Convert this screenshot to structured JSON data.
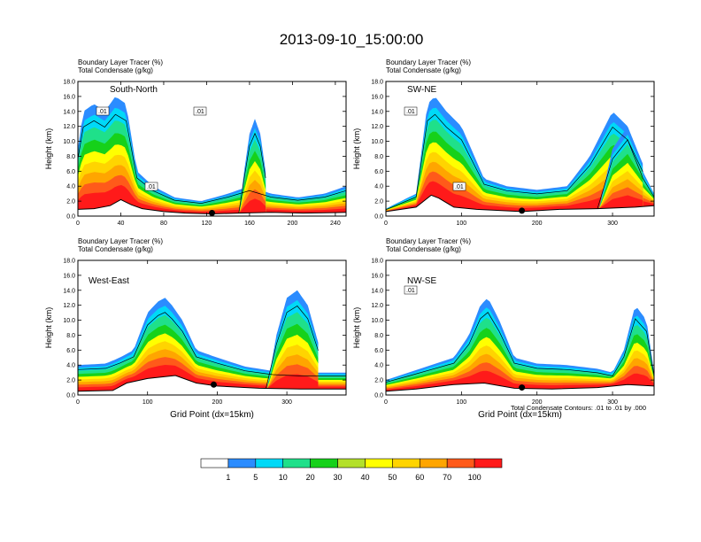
{
  "title": "2013-09-10_15:00:00",
  "chart_data": [
    {
      "type": "heatmap",
      "panel_label": "South-North",
      "subtitles": [
        "Boundary Layer Tracer    (%)",
        "Total Condensate    (g/kg)"
      ],
      "ylabel": "Height (km)",
      "xlabel": "",
      "xlim": [
        0,
        250
      ],
      "ylim": [
        0,
        18
      ],
      "xticks": [
        "0",
        "40",
        "80",
        "120",
        "160",
        "200",
        "240"
      ],
      "xtick_values": [
        0,
        40,
        80,
        120,
        160,
        200,
        240
      ],
      "yticks": [
        "0.0",
        "2.0",
        "4.0",
        "6.0",
        "8.0",
        "10.0",
        "12.0",
        "14.0",
        "16.0",
        "18.0"
      ],
      "contour_labels": [
        ".01",
        ".01",
        ".01"
      ],
      "marker_x": 125,
      "terrain": [
        [
          0,
          0.9
        ],
        [
          15,
          1.0
        ],
        [
          30,
          1.4
        ],
        [
          40,
          2.2
        ],
        [
          50,
          1.5
        ],
        [
          60,
          1.0
        ],
        [
          80,
          0.6
        ],
        [
          100,
          0.4
        ],
        [
          125,
          0.3
        ],
        [
          150,
          0.4
        ],
        [
          180,
          0.5
        ],
        [
          210,
          0.4
        ],
        [
          250,
          0.5
        ]
      ],
      "plumes": [
        {
          "x": [
            0,
            5,
            15,
            25,
            35,
            45,
            55,
            70,
            90,
            115,
            140,
            160,
            180,
            205,
            230,
            250
          ],
          "top": [
            9,
            14,
            15,
            14,
            16,
            15,
            6,
            4,
            2.5,
            2,
            3,
            4,
            3,
            2.5,
            3,
            4
          ]
        },
        {
          "x": [
            150,
            155,
            160,
            165,
            170,
            175
          ],
          "top": [
            0,
            6,
            11,
            13,
            11,
            6
          ]
        }
      ]
    },
    {
      "type": "heatmap",
      "panel_label": "SW-NE",
      "subtitles": [
        "Boundary Layer Tracer    (%)",
        "Total Condensate    (g/kg)"
      ],
      "ylabel": "Height (km)",
      "xlabel": "",
      "xlim": [
        0,
        355
      ],
      "ylim": [
        0,
        18
      ],
      "xticks": [
        "0",
        "100",
        "200",
        "300"
      ],
      "xtick_values": [
        0,
        100,
        200,
        300
      ],
      "yticks": [
        "0.0",
        "2.0",
        "4.0",
        "6.0",
        "8.0",
        "10.0",
        "12.0",
        "14.0",
        "16.0",
        "18.0"
      ],
      "contour_labels": [
        ".01",
        ".01"
      ],
      "marker_x": 180,
      "terrain": [
        [
          0,
          0.6
        ],
        [
          40,
          1.2
        ],
        [
          60,
          2.8
        ],
        [
          70,
          2.4
        ],
        [
          90,
          1.2
        ],
        [
          120,
          0.9
        ],
        [
          180,
          0.6
        ],
        [
          230,
          0.9
        ],
        [
          280,
          1.0
        ],
        [
          330,
          1.2
        ],
        [
          355,
          1.4
        ]
      ],
      "plumes": [
        {
          "x": [
            0,
            20,
            40,
            55,
            65,
            80,
            100,
            130,
            160,
            200,
            240,
            270,
            300,
            320,
            340,
            355
          ],
          "top": [
            1,
            2,
            3,
            15,
            16,
            14,
            12,
            5,
            4,
            3.5,
            4,
            8,
            14,
            12,
            6,
            3
          ]
        },
        {
          "x": [
            280,
            300,
            320,
            340
          ],
          "top": [
            0,
            9,
            12,
            7
          ]
        }
      ]
    },
    {
      "type": "heatmap",
      "panel_label": "West-East",
      "subtitles": [
        "Boundary Layer Tracer    (%)",
        "Total Condensate    (g/kg)"
      ],
      "ylabel": "Height (km)",
      "xlabel": "Grid Point (dx=15km)",
      "xlim": [
        0,
        385
      ],
      "ylim": [
        0,
        18
      ],
      "xticks": [
        "0",
        "100",
        "200",
        "300"
      ],
      "xtick_values": [
        0,
        100,
        200,
        300
      ],
      "yticks": [
        "0.0",
        "2.0",
        "4.0",
        "6.0",
        "8.0",
        "10.0",
        "12.0",
        "14.0",
        "16.0",
        "18.0"
      ],
      "contour_labels": [],
      "marker_x": 195,
      "terrain": [
        [
          0,
          0.5
        ],
        [
          50,
          0.6
        ],
        [
          70,
          1.6
        ],
        [
          100,
          2.2
        ],
        [
          140,
          2.6
        ],
        [
          170,
          1.6
        ],
        [
          200,
          1.2
        ],
        [
          260,
          0.9
        ],
        [
          320,
          0.8
        ],
        [
          385,
          0.8
        ]
      ],
      "plumes": [
        {
          "x": [
            0,
            40,
            60,
            80,
            100,
            115,
            125,
            135,
            150,
            170,
            200,
            240,
            280,
            320,
            360,
            385
          ],
          "top": [
            4,
            4.2,
            5,
            6,
            11,
            12.5,
            13,
            12,
            10,
            6,
            5,
            3.8,
            3.2,
            3,
            3,
            3
          ]
        },
        {
          "x": [
            270,
            285,
            300,
            315,
            330,
            345
          ],
          "top": [
            0,
            8,
            13,
            14,
            12,
            7
          ]
        }
      ]
    },
    {
      "type": "heatmap",
      "panel_label": "NW-SE",
      "subtitles": [
        "Boundary Layer Tracer    (%)",
        "Total Condensate    (g/kg)"
      ],
      "ylabel": "Height (km)",
      "xlabel": "Grid Point (dx=15km)",
      "xlim": [
        0,
        355
      ],
      "ylim": [
        0,
        18
      ],
      "xticks": [
        "0",
        "100",
        "200",
        "300"
      ],
      "xtick_values": [
        0,
        100,
        200,
        300
      ],
      "yticks": [
        "0.0",
        "2.0",
        "4.0",
        "6.0",
        "8.0",
        "10.0",
        "12.0",
        "14.0",
        "16.0",
        "18.0"
      ],
      "contour_labels": [
        ".01"
      ],
      "marker_x": 180,
      "terrain": [
        [
          0,
          0.5
        ],
        [
          40,
          0.8
        ],
        [
          90,
          1.4
        ],
        [
          130,
          1.6
        ],
        [
          170,
          0.9
        ],
        [
          220,
          0.8
        ],
        [
          280,
          1.0
        ],
        [
          320,
          1.4
        ],
        [
          355,
          1.2
        ]
      ],
      "plumes": [
        {
          "x": [
            0,
            30,
            60,
            90,
            110,
            125,
            135,
            150,
            170,
            200,
            240,
            280,
            300,
            315,
            330,
            345,
            355
          ],
          "top": [
            2,
            3,
            4,
            5,
            8,
            12,
            13,
            10,
            5,
            4.2,
            4,
            3.5,
            3,
            6,
            12,
            10,
            3
          ]
        }
      ]
    }
  ],
  "footer_note": "Total Condensate Contours: .01 to .01 by .000",
  "colorbar": {
    "colors": [
      "#ffffff",
      "#2b8cff",
      "#00d9f7",
      "#1fe08a",
      "#16d11a",
      "#b3e02a",
      "#ffff00",
      "#ffd400",
      "#ffa500",
      "#ff5a1a",
      "#ff1a1a"
    ],
    "labels": [
      "1",
      "5",
      "10",
      "20",
      "30",
      "40",
      "50",
      "60",
      "70",
      "100"
    ]
  }
}
